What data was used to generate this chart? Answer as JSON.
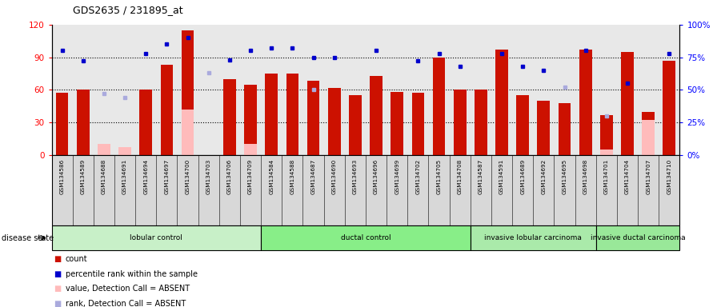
{
  "title": "GDS2635 / 231895_at",
  "samples": [
    "GSM134586",
    "GSM134589",
    "GSM134688",
    "GSM134691",
    "GSM134694",
    "GSM134697",
    "GSM134700",
    "GSM134703",
    "GSM134706",
    "GSM134709",
    "GSM134584",
    "GSM134588",
    "GSM134687",
    "GSM134690",
    "GSM134693",
    "GSM134696",
    "GSM134699",
    "GSM134702",
    "GSM134705",
    "GSM134708",
    "GSM134587",
    "GSM134591",
    "GSM134689",
    "GSM134692",
    "GSM134695",
    "GSM134698",
    "GSM134701",
    "GSM134704",
    "GSM134707",
    "GSM134710"
  ],
  "count_values": [
    57,
    60,
    null,
    null,
    60,
    83,
    115,
    null,
    70,
    65,
    75,
    75,
    68,
    62,
    55,
    73,
    58,
    57,
    90,
    60,
    60,
    97,
    55,
    50,
    48,
    97,
    37,
    95,
    40,
    87
  ],
  "absent_value_values": [
    null,
    null,
    10,
    7,
    null,
    null,
    42,
    null,
    null,
    10,
    null,
    null,
    null,
    null,
    null,
    null,
    null,
    null,
    null,
    null,
    null,
    null,
    null,
    null,
    null,
    null,
    5,
    null,
    32,
    null
  ],
  "percentile_present": [
    80,
    72,
    null,
    null,
    78,
    85,
    90,
    null,
    73,
    80,
    82,
    82,
    75,
    75,
    null,
    80,
    null,
    72,
    78,
    68,
    null,
    78,
    68,
    65,
    null,
    80,
    null,
    55,
    null,
    78
  ],
  "rank_absent": [
    null,
    null,
    47,
    44,
    null,
    null,
    null,
    63,
    null,
    null,
    null,
    null,
    50,
    null,
    null,
    null,
    null,
    null,
    null,
    null,
    null,
    null,
    null,
    null,
    52,
    null,
    30,
    null,
    null,
    null
  ],
  "groups": [
    {
      "label": "lobular control",
      "start": 0,
      "end": 10,
      "color": "#c8f0c8"
    },
    {
      "label": "ductal control",
      "start": 10,
      "end": 20,
      "color": "#88ee88"
    },
    {
      "label": "invasive lobular carcinoma",
      "start": 20,
      "end": 26,
      "color": "#aaeaaa"
    },
    {
      "label": "invasive ductal carcinoma",
      "start": 26,
      "end": 30,
      "color": "#99e899"
    }
  ],
  "ylim_left": [
    0,
    120
  ],
  "ylim_right": [
    0,
    100
  ],
  "yticks_left": [
    0,
    30,
    60,
    90,
    120
  ],
  "yticks_right": [
    0,
    25,
    50,
    75,
    100
  ],
  "ytick_labels_left": [
    "0",
    "30",
    "60",
    "90",
    "120"
  ],
  "ytick_labels_right": [
    "0%",
    "25%",
    "50%",
    "75%",
    "100%"
  ],
  "hgrid_lines": [
    30,
    60,
    90
  ],
  "bar_color": "#cc1100",
  "absent_value_color": "#ffbbbb",
  "percentile_color": "#0000cc",
  "rank_absent_color": "#aaaadd",
  "bg_color": "#e8e8e8",
  "xtick_bg": "#d8d8d8",
  "disease_state_label": "disease state",
  "legend_items": [
    {
      "color": "#cc1100",
      "label": "count"
    },
    {
      "color": "#0000cc",
      "label": "percentile rank within the sample"
    },
    {
      "color": "#ffbbbb",
      "label": "value, Detection Call = ABSENT"
    },
    {
      "color": "#aaaadd",
      "label": "rank, Detection Call = ABSENT"
    }
  ]
}
